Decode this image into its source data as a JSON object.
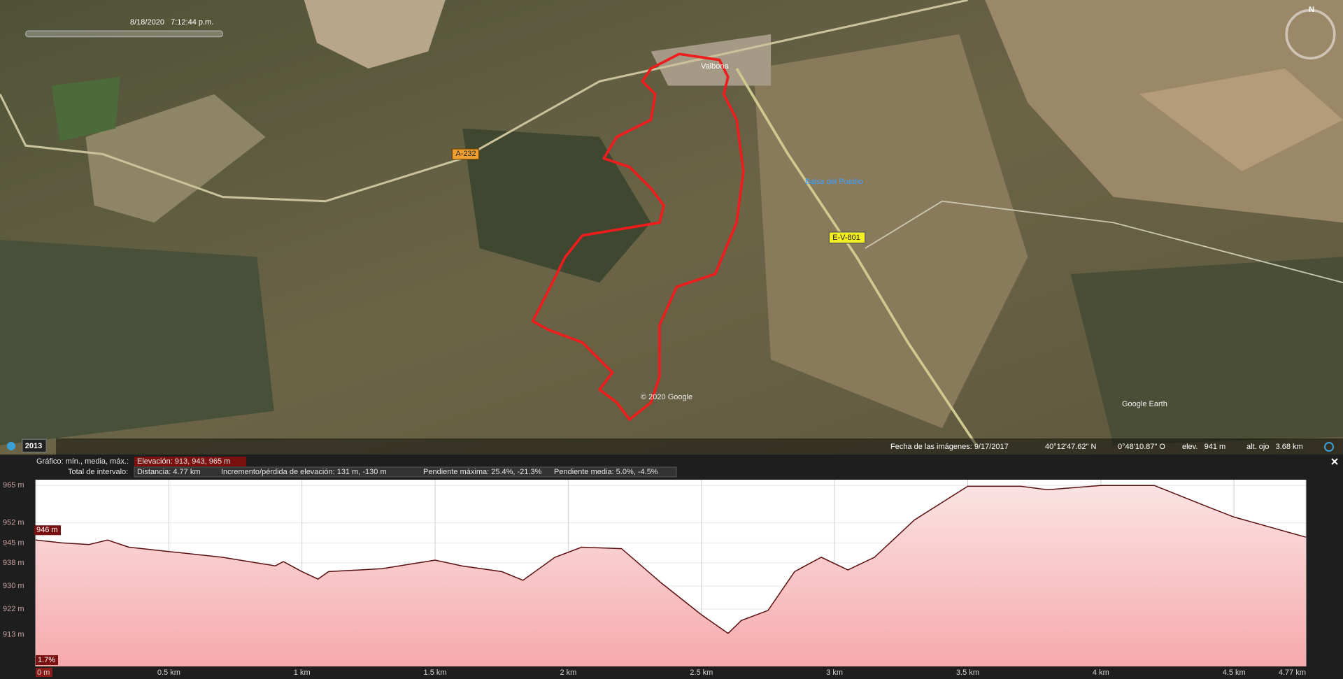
{
  "map": {
    "timestamp": "8/18/2020   7:12:44 p.m.",
    "town": "Valbona",
    "pond": "Balsa del Pueblo",
    "road_a": "A-232",
    "road_e": "E-V-801",
    "copyright": "© 2020 Google",
    "logo": "Google Earth",
    "compass": "N",
    "year": "2013"
  },
  "status_bar": {
    "imagery_date": "Fecha de las imágenes: 9/17/2017",
    "lat": "40°12'47.62\" N",
    "lon": "0°48'10.87\" O",
    "elevation": "elev.   941 m",
    "eye_altitude": "alt. ojo   3.68 km"
  },
  "profile_summary": {
    "graph_label": "Gráfico: mín., media, máx.:",
    "elevation": "Elevación: 913, 943, 965 m",
    "interval_label": "Total de intervalo:",
    "distance": "Distancia: 4.77 km",
    "gain_loss": "Incremento/pérdida de elevación: 131 m, -130 m",
    "max_slope": "Pendiente máxima: 25.4%, -21.3%",
    "avg_slope": "Pendiente media: 5.0%, -4.5%"
  },
  "chart_data": {
    "type": "area",
    "color": "#5a0f0f",
    "x": [
      0,
      0.1,
      0.2,
      0.27,
      0.35,
      0.5,
      0.7,
      0.9,
      0.93,
      1.0,
      1.06,
      1.1,
      1.3,
      1.5,
      1.6,
      1.75,
      1.83,
      1.95,
      2.05,
      2.2,
      2.35,
      2.5,
      2.6,
      2.65,
      2.75,
      2.85,
      2.95,
      3.05,
      3.15,
      3.3,
      3.5,
      3.7,
      3.8,
      4.0,
      4.2,
      4.4,
      4.5,
      4.77
    ],
    "values": [
      946,
      945,
      944.4,
      946,
      943.5,
      942,
      940,
      937,
      938.5,
      935,
      932.4,
      935,
      936,
      939,
      937,
      935,
      932,
      940,
      943.5,
      943,
      931,
      920,
      913.5,
      918,
      921.5,
      935,
      940,
      935.6,
      940,
      953,
      964.7,
      964.7,
      963.5,
      965,
      965,
      957.6,
      954,
      947
    ],
    "xlim": [
      0,
      4.77
    ],
    "ylim": [
      902,
      967
    ],
    "xticks": [
      {
        "value": 0,
        "label": "0 m"
      },
      {
        "value": 0.5,
        "label": "0.5 km"
      },
      {
        "value": 1,
        "label": "1 km"
      },
      {
        "value": 1.5,
        "label": "1.5 km"
      },
      {
        "value": 2,
        "label": "2 km"
      },
      {
        "value": 2.5,
        "label": "2.5 km"
      },
      {
        "value": 3,
        "label": "3 km"
      },
      {
        "value": 3.5,
        "label": "3.5 km"
      },
      {
        "value": 4,
        "label": "4 km"
      },
      {
        "value": 4.5,
        "label": "4.5 km"
      },
      {
        "value": 4.77,
        "label": "4.77 km"
      }
    ],
    "yticks": [
      {
        "value": 965,
        "label": "965 m"
      },
      {
        "value": 952,
        "label": "952 m"
      },
      {
        "value": 945,
        "label": "945 m"
      },
      {
        "value": 938,
        "label": "938 m"
      },
      {
        "value": 930,
        "label": "930 m"
      },
      {
        "value": 922,
        "label": "922 m"
      },
      {
        "value": 913,
        "label": "913 m"
      }
    ],
    "grid": true,
    "cursor_label": "946 m",
    "slope_label": "1.7%"
  }
}
